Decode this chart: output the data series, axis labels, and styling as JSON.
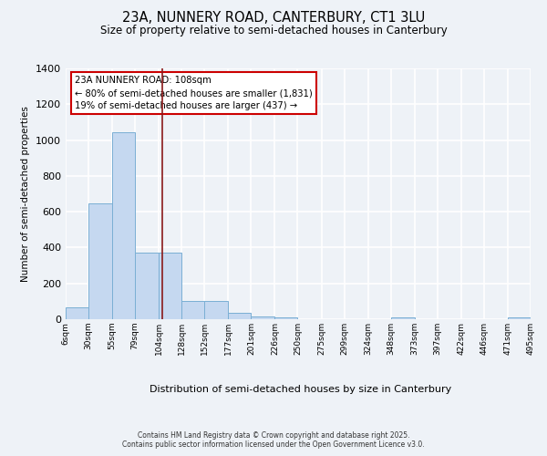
{
  "title1": "23A, NUNNERY ROAD, CANTERBURY, CT1 3LU",
  "title2": "Size of property relative to semi-detached houses in Canterbury",
  "xlabel": "Distribution of semi-detached houses by size in Canterbury",
  "ylabel": "Number of semi-detached properties",
  "bin_edges": [
    6,
    30,
    55,
    79,
    104,
    128,
    152,
    177,
    201,
    226,
    250,
    275,
    299,
    324,
    348,
    373,
    397,
    422,
    446,
    471,
    495
  ],
  "bar_heights": [
    65,
    645,
    1045,
    370,
    370,
    100,
    100,
    35,
    15,
    10,
    0,
    0,
    0,
    0,
    10,
    0,
    0,
    0,
    0,
    10
  ],
  "bar_color": "#c5d8f0",
  "bar_edge_color": "#7aafd4",
  "vline_x": 108,
  "vline_color": "#8b1a1a",
  "ylim": [
    0,
    1400
  ],
  "yticks": [
    0,
    200,
    400,
    600,
    800,
    1000,
    1200,
    1400
  ],
  "annotation_title": "23A NUNNERY ROAD: 108sqm",
  "annotation_line1": "← 80% of semi-detached houses are smaller (1,831)",
  "annotation_line2": "19% of semi-detached houses are larger (437) →",
  "annotation_box_color": "#ffffff",
  "annotation_edge_color": "#cc0000",
  "bg_color": "#eef2f7",
  "plot_bg_color": "#eef2f7",
  "grid_color": "#ffffff",
  "footer1": "Contains HM Land Registry data © Crown copyright and database right 2025.",
  "footer2": "Contains public sector information licensed under the Open Government Licence v3.0.",
  "tick_labels": [
    "6sqm",
    "30sqm",
    "55sqm",
    "79sqm",
    "104sqm",
    "128sqm",
    "152sqm",
    "177sqm",
    "201sqm",
    "226sqm",
    "250sqm",
    "275sqm",
    "299sqm",
    "324sqm",
    "348sqm",
    "373sqm",
    "397sqm",
    "422sqm",
    "446sqm",
    "471sqm",
    "495sqm"
  ]
}
